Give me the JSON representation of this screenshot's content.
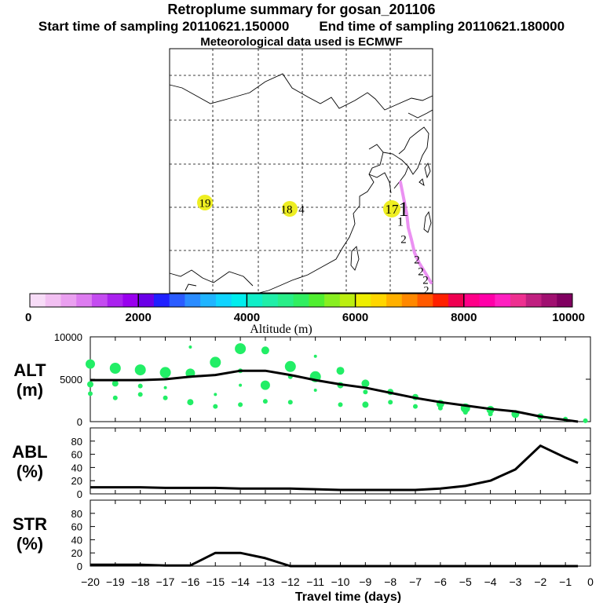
{
  "header": {
    "title": "Retroplume summary for gosan_201106",
    "start_label": "Start time of sampling 20110621.150000",
    "end_label": "End time of sampling 20110621.180000",
    "met_label": "Meteorological data used is ECMWF"
  },
  "map": {
    "markers": [
      {
        "label": "19",
        "color": "#eeee22"
      },
      {
        "label": "18",
        "color": "#eeee22"
      },
      {
        "label": "4",
        "color": ""
      },
      {
        "label": "17",
        "color": "#eeee22"
      },
      {
        "label": "1",
        "color": ""
      },
      {
        "label": "1",
        "color": ""
      },
      {
        "label": "2",
        "color": ""
      },
      {
        "label": "2",
        "color": ""
      },
      {
        "label": "2",
        "color": ""
      },
      {
        "label": "2",
        "color": ""
      },
      {
        "label": "2",
        "color": ""
      }
    ],
    "plume_color": "#e87ef0"
  },
  "colorbar": {
    "ticks": [
      "0",
      "2000",
      "4000",
      "6000",
      "8000",
      "10000"
    ],
    "label": "Altitude (m)",
    "colors": [
      "#f7dcf7",
      "#f2c0f2",
      "#eaa0f0",
      "#dd7cf0",
      "#c44cf0",
      "#aa22ee",
      "#9900ee",
      "#6a00e8",
      "#2020ff",
      "#2a5cff",
      "#2a8cff",
      "#20b4ff",
      "#10d4ff",
      "#00eeee",
      "#10eec8",
      "#20eea8",
      "#28ee88",
      "#30ee60",
      "#50ee30",
      "#88ee20",
      "#bbee10",
      "#eeee00",
      "#ffd600",
      "#ffb000",
      "#ff8800",
      "#ff5a00",
      "#ff2000",
      "#ee0050",
      "#ff0088",
      "#ff00a8",
      "#ff20c0",
      "#ee3090",
      "#c02080",
      "#a01070",
      "#800060"
    ]
  },
  "chart_data": [
    {
      "type": "line",
      "panel": "ALT",
      "ylabel": "ALT\n(m)",
      "ylabel_lines": [
        "ALT",
        "(m)"
      ],
      "ylim": [
        0,
        10000
      ],
      "yticks": [
        "0",
        "5000",
        "10000"
      ],
      "xlim": [
        -20,
        0
      ],
      "x": [
        -20,
        -19,
        -18,
        -17,
        -16,
        -15,
        -14,
        -13,
        -12,
        -11,
        -10,
        -9,
        -8,
        -7,
        -6,
        -5,
        -4,
        -3,
        -2,
        -1,
        -0.5
      ],
      "series": [
        {
          "name": "mean altitude",
          "values": [
            4900,
            4900,
            4900,
            5000,
            5300,
            5500,
            6000,
            6000,
            5500,
            4900,
            4400,
            4000,
            3400,
            2800,
            2300,
            1900,
            1500,
            1200,
            600,
            200,
            0
          ]
        }
      ],
      "scatter": [
        {
          "x": -20,
          "y": 6800,
          "s": 6
        },
        {
          "x": -20,
          "y": 4400,
          "s": 4
        },
        {
          "x": -20,
          "y": 3300,
          "s": 3
        },
        {
          "x": -19,
          "y": 6300,
          "s": 7
        },
        {
          "x": -19,
          "y": 4500,
          "s": 4
        },
        {
          "x": -19,
          "y": 2800,
          "s": 3
        },
        {
          "x": -18,
          "y": 6100,
          "s": 7
        },
        {
          "x": -18,
          "y": 4200,
          "s": 3
        },
        {
          "x": -18,
          "y": 3200,
          "s": 3
        },
        {
          "x": -17,
          "y": 5800,
          "s": 7
        },
        {
          "x": -17,
          "y": 4000,
          "s": 2
        },
        {
          "x": -17,
          "y": 2800,
          "s": 3
        },
        {
          "x": -16,
          "y": 8800,
          "s": 2
        },
        {
          "x": -16,
          "y": 5700,
          "s": 6
        },
        {
          "x": -16,
          "y": 2300,
          "s": 4
        },
        {
          "x": -15,
          "y": 7000,
          "s": 7
        },
        {
          "x": -15,
          "y": 3200,
          "s": 2
        },
        {
          "x": -15,
          "y": 1800,
          "s": 3
        },
        {
          "x": -14,
          "y": 8600,
          "s": 7
        },
        {
          "x": -14,
          "y": 6000,
          "s": 3
        },
        {
          "x": -14,
          "y": 4300,
          "s": 2
        },
        {
          "x": -14,
          "y": 2000,
          "s": 3
        },
        {
          "x": -13,
          "y": 8400,
          "s": 5
        },
        {
          "x": -13,
          "y": 4300,
          "s": 6
        },
        {
          "x": -13,
          "y": 2400,
          "s": 3
        },
        {
          "x": -12,
          "y": 6500,
          "s": 7
        },
        {
          "x": -12,
          "y": 5300,
          "s": 3
        },
        {
          "x": -12,
          "y": 2300,
          "s": 3
        },
        {
          "x": -11,
          "y": 7700,
          "s": 2
        },
        {
          "x": -11,
          "y": 5300,
          "s": 7
        },
        {
          "x": -11,
          "y": 3700,
          "s": 2
        },
        {
          "x": -10,
          "y": 6000,
          "s": 5
        },
        {
          "x": -10,
          "y": 4300,
          "s": 4
        },
        {
          "x": -10,
          "y": 2000,
          "s": 3
        },
        {
          "x": -9,
          "y": 4500,
          "s": 5
        },
        {
          "x": -9,
          "y": 3500,
          "s": 3
        },
        {
          "x": -9,
          "y": 2000,
          "s": 4
        },
        {
          "x": -8,
          "y": 3500,
          "s": 4
        },
        {
          "x": -8,
          "y": 2300,
          "s": 3
        },
        {
          "x": -7,
          "y": 2900,
          "s": 4
        },
        {
          "x": -7,
          "y": 1800,
          "s": 3
        },
        {
          "x": -6,
          "y": 2100,
          "s": 5
        },
        {
          "x": -6,
          "y": 1600,
          "s": 3
        },
        {
          "x": -5,
          "y": 1600,
          "s": 6
        },
        {
          "x": -5,
          "y": 1100,
          "s": 3
        },
        {
          "x": -4,
          "y": 1400,
          "s": 5
        },
        {
          "x": -4,
          "y": 900,
          "s": 3
        },
        {
          "x": -3,
          "y": 900,
          "s": 5
        },
        {
          "x": -2,
          "y": 600,
          "s": 4
        },
        {
          "x": -1,
          "y": 300,
          "s": 3
        },
        {
          "x": -0.2,
          "y": 100,
          "s": 3
        }
      ],
      "scatter_color": "#22ee66"
    },
    {
      "type": "line",
      "panel": "ABL",
      "ylabel": "ABL\n(%)",
      "ylabel_lines": [
        "ABL",
        "(%)"
      ],
      "ylim": [
        0,
        100
      ],
      "yticks": [
        "0",
        "20",
        "40",
        "60",
        "80"
      ],
      "xlim": [
        -20,
        0
      ],
      "x": [
        -20,
        -19,
        -18,
        -17,
        -16,
        -15,
        -14,
        -13,
        -12,
        -11,
        -10,
        -9,
        -8,
        -7,
        -6,
        -5,
        -4,
        -3,
        -2,
        -1,
        -0.5
      ],
      "series": [
        {
          "name": "ABL fraction",
          "values": [
            10,
            10,
            10,
            9,
            9,
            9,
            8,
            8,
            8,
            7,
            6,
            6,
            6,
            6,
            8,
            12,
            20,
            37,
            73,
            55,
            47
          ]
        }
      ]
    },
    {
      "type": "line",
      "panel": "STR",
      "ylabel": "STR\n(%)",
      "ylabel_lines": [
        "STR",
        "(%)"
      ],
      "ylim": [
        0,
        100
      ],
      "yticks": [
        "0",
        "20",
        "40",
        "60",
        "80"
      ],
      "xlim": [
        -20,
        0
      ],
      "x": [
        -20,
        -19,
        -18,
        -17,
        -16,
        -15,
        -14,
        -13,
        -12,
        -11,
        -10,
        -9,
        -8,
        -7,
        -6,
        -5,
        -4,
        -3,
        -2,
        -1,
        -0.5
      ],
      "series": [
        {
          "name": "stratospheric fraction",
          "values": [
            2,
            2,
            2,
            1,
            1,
            20,
            20,
            12,
            0,
            0,
            0,
            0,
            0,
            0,
            0,
            0,
            0,
            0,
            0,
            0,
            0
          ]
        }
      ],
      "xticks": [
        "−20",
        "−19",
        "−18",
        "−17",
        "−16",
        "−15",
        "−14",
        "−13",
        "−12",
        "−11",
        "−10",
        "−9",
        "−8",
        "−7",
        "−6",
        "−5",
        "−4",
        "−3",
        "−2",
        "−1",
        "0"
      ],
      "xlabel": "Travel time (days)"
    }
  ]
}
